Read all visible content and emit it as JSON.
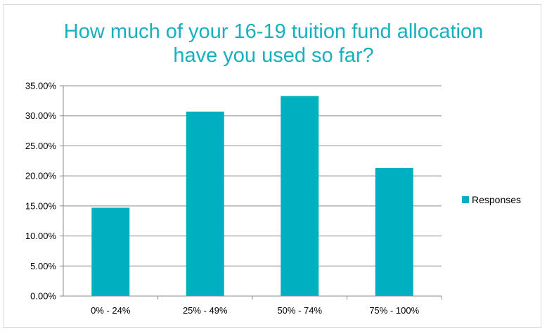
{
  "chart_data": {
    "type": "bar",
    "title": "How much of your 16-19 tuition fund allocation have you used so far?",
    "categories": [
      "0% - 24%",
      "25% - 49%",
      "50% - 74%",
      "75% - 100%"
    ],
    "series": [
      {
        "name": "Responses",
        "values": [
          14.7,
          30.7,
          33.3,
          21.3
        ],
        "color": "#00b0c0"
      }
    ],
    "yticks": [
      "0.00%",
      "5.00%",
      "10.00%",
      "15.00%",
      "20.00%",
      "25.00%",
      "30.00%",
      "35.00%"
    ],
    "ylim": [
      0,
      35
    ],
    "grid": true,
    "legend_position": "right"
  }
}
